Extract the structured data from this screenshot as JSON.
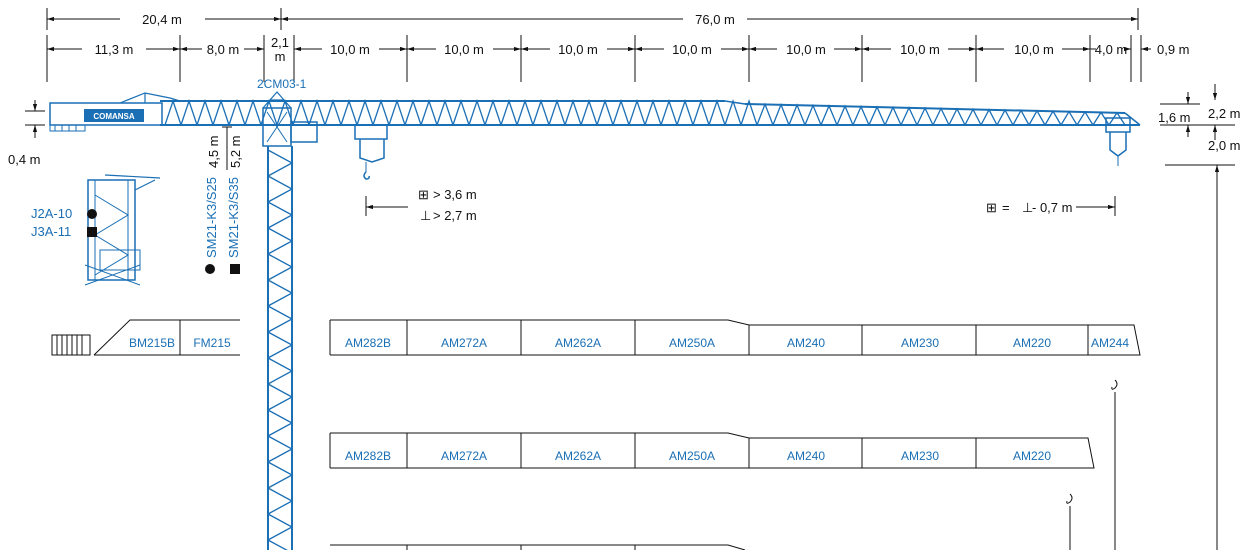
{
  "top_dims": {
    "counter_jib_total": "20,4 m",
    "jib_total": "76,0 m",
    "segments": [
      "11,3 m",
      "8,0 m",
      "2,1",
      "10,0 m",
      "10,0 m",
      "10,0 m",
      "10,0 m",
      "10,0 m",
      "10,0 m",
      "10,0 m",
      "4,0 m",
      "0,9 m"
    ],
    "segment_2_1_unit": "m"
  },
  "labels": {
    "top_section": "2CM03-1",
    "brand": "COMANSA",
    "counter_jib_height": "0,4 m",
    "tower_top_a": "4,5 m",
    "tower_top_b": "5,2 m",
    "mast_a": "SM21-K3/S25",
    "mast_b": "SM21-K3/S35",
    "ballast_a": "J2A-10",
    "ballast_b": "J3A-11",
    "trolley_a": "> 3,6 m",
    "trolley_b": "> 2,7 m",
    "tip_note": "= ",
    "tip_note_b": " - 0,7 m",
    "jib_h1": "1,6 m",
    "jib_h2": "2,2 m",
    "jib_h3": "2,0 m"
  },
  "counter_jib_sections": [
    "BM215B",
    "FM215"
  ],
  "jib_configs": [
    [
      "AM282B",
      "AM272A",
      "AM262A",
      "AM250A",
      "AM240",
      "AM230",
      "AM220",
      "AM244"
    ],
    [
      "AM282B",
      "AM272A",
      "AM262A",
      "AM250A",
      "AM240",
      "AM230",
      "AM220"
    ]
  ],
  "colors": {
    "structure": "#1a6fb5",
    "dimension": "#111111"
  }
}
